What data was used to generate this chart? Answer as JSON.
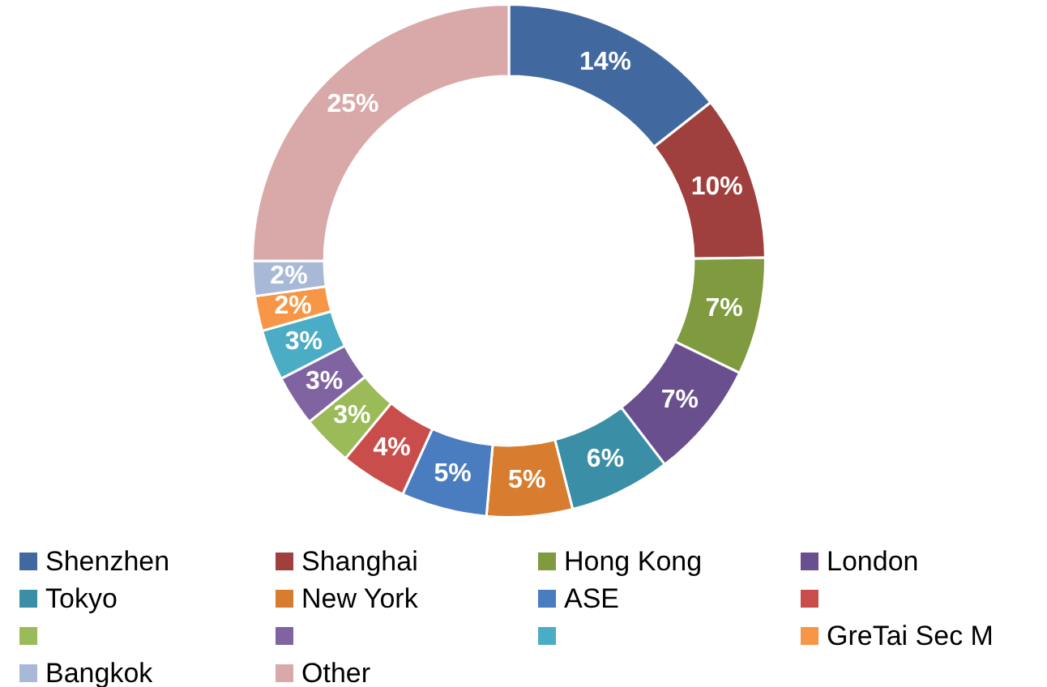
{
  "chart_data": {
    "type": "donut",
    "categories": [
      "Shenzhen",
      "Shanghai",
      "Hong Kong",
      "London",
      "Tokyo",
      "New York",
      "ASE",
      null,
      null,
      null,
      null,
      "GreTai Sec M",
      "Bangkok",
      "Other"
    ],
    "values": [
      14.4,
      10.4,
      7.4,
      7.4,
      6.4,
      5.4,
      5.4,
      4.2,
      3.2,
      3.2,
      3.2,
      2.2,
      2.2,
      25.0
    ],
    "value_labels": [
      "14%",
      "10%",
      "7%",
      "7%",
      "6%",
      "5%",
      "5%",
      "4%",
      "3%",
      "3%",
      "3%",
      "2%",
      "2%",
      "25%"
    ],
    "colors": [
      "#4169a0",
      "#a0403e",
      "#7f9a3f",
      "#6a4f8e",
      "#3a8ea5",
      "#d87c2f",
      "#4a7cc0",
      "#c84d4b",
      "#9bbb59",
      "#8064a2",
      "#4bacc6",
      "#f79646",
      "#a8b9d8",
      "#d9a9a9"
    ],
    "legend": "bottom"
  }
}
